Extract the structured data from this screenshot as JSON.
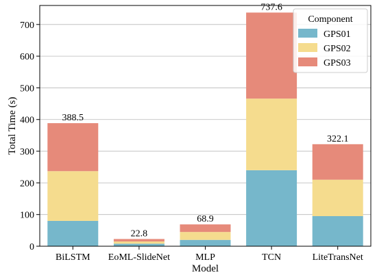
{
  "chart_data": {
    "type": "bar",
    "stacked": true,
    "categories": [
      "BiLSTM",
      "EoML-SlideNet",
      "MLP",
      "TCN",
      "LiteTransNet"
    ],
    "series": [
      {
        "name": "GPS01",
        "values": [
          80,
          8,
          20,
          240,
          95
        ],
        "color": "#76b7cb"
      },
      {
        "name": "GPS02",
        "values": [
          157,
          7,
          25,
          226,
          115
        ],
        "color": "#f5dc8e"
      },
      {
        "name": "GPS03",
        "values": [
          151.5,
          7.8,
          23.9,
          271.6,
          112.1
        ],
        "color": "#e68a7a"
      }
    ],
    "totals": [
      "388.5",
      "22.8",
      "68.9",
      "737.6",
      "322.1"
    ],
    "xlabel": "Model",
    "ylabel": "Total Time (s)",
    "ylim": [
      0,
      760
    ],
    "yticks": [
      0,
      100,
      200,
      300,
      400,
      500,
      600,
      700
    ],
    "grid": "y",
    "legend": {
      "title": "Component",
      "placement": "top-right"
    }
  }
}
